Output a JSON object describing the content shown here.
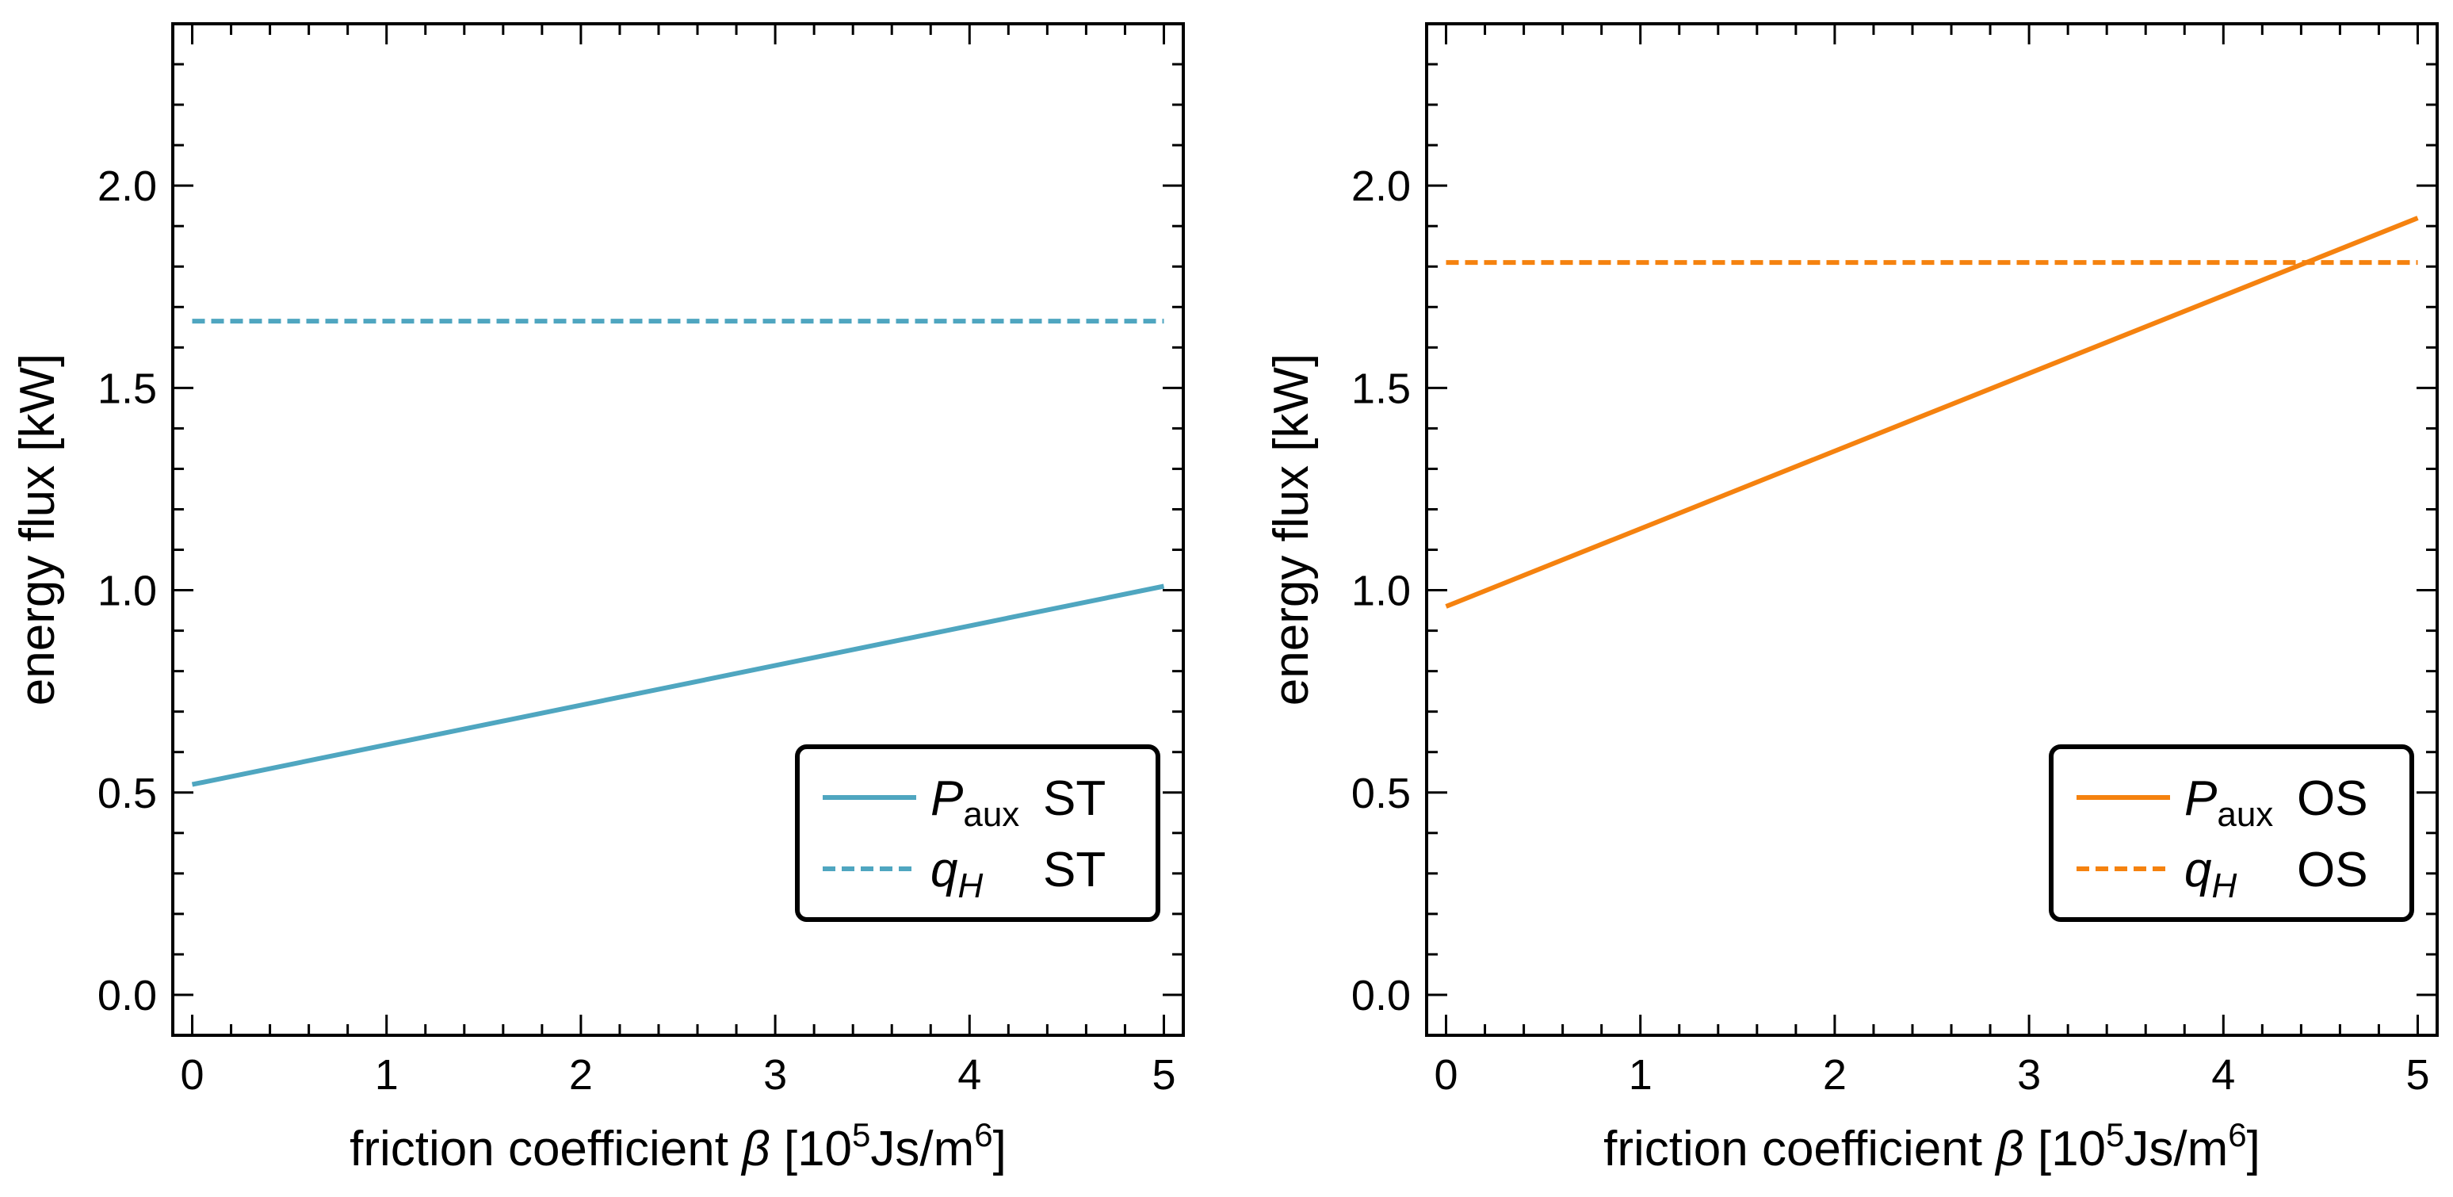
{
  "chart_data": [
    {
      "type": "line",
      "panel": "left",
      "title": "",
      "xlabel": {
        "text": "friction coefficient ",
        "symbol": "β",
        "unit_open": " [10",
        "unit_exp": "5",
        "unit_mid": "Js/m",
        "unit_exp2": "6",
        "unit_close": "]"
      },
      "ylabel": "energy flux [kW]",
      "xlim": [
        -0.1,
        5.1
      ],
      "ylim": [
        -0.1,
        2.4
      ],
      "xticks": [
        0,
        1,
        2,
        3,
        4,
        5
      ],
      "xtick_labels": [
        "0",
        "1",
        "2",
        "3",
        "4",
        "5"
      ],
      "yticks": [
        0.0,
        0.5,
        1.0,
        1.5,
        2.0
      ],
      "ytick_labels": [
        "0.0",
        "0.5",
        "1.0",
        "1.5",
        "2.0"
      ],
      "grid": false,
      "legend_position": "lower-right",
      "series": [
        {
          "name_main": "P",
          "name_sub": "aux",
          "name_suffix": "ST",
          "style": "solid",
          "color": "#4fa6c0",
          "x": [
            0,
            5
          ],
          "y": [
            0.52,
            1.01
          ]
        },
        {
          "name_main": "q",
          "name_sub": "H",
          "name_suffix": "ST",
          "style": "dashed",
          "color": "#4fa6c0",
          "x": [
            0,
            5
          ],
          "y": [
            1.665,
            1.665
          ]
        }
      ]
    },
    {
      "type": "line",
      "panel": "right",
      "title": "",
      "xlabel": {
        "text": "friction coefficient ",
        "symbol": "β",
        "unit_open": " [10",
        "unit_exp": "5",
        "unit_mid": "Js/m",
        "unit_exp2": "6",
        "unit_close": "]"
      },
      "ylabel": "energy flux [kW]",
      "xlim": [
        -0.1,
        5.1
      ],
      "ylim": [
        -0.1,
        2.4
      ],
      "xticks": [
        0,
        1,
        2,
        3,
        4,
        5
      ],
      "xtick_labels": [
        "0",
        "1",
        "2",
        "3",
        "4",
        "5"
      ],
      "yticks": [
        0.0,
        0.5,
        1.0,
        1.5,
        2.0
      ],
      "ytick_labels": [
        "0.0",
        "0.5",
        "1.0",
        "1.5",
        "2.0"
      ],
      "grid": false,
      "legend_position": "lower-right",
      "series": [
        {
          "name_main": "P",
          "name_sub": "aux",
          "name_suffix": "OS",
          "style": "solid",
          "color": "#f5820f",
          "x": [
            0,
            5
          ],
          "y": [
            0.96,
            1.92
          ]
        },
        {
          "name_main": "q",
          "name_sub": "H",
          "name_suffix": "OS",
          "style": "dashed",
          "color": "#f5820f",
          "x": [
            0,
            5
          ],
          "y": [
            1.81,
            1.81
          ]
        }
      ]
    }
  ]
}
